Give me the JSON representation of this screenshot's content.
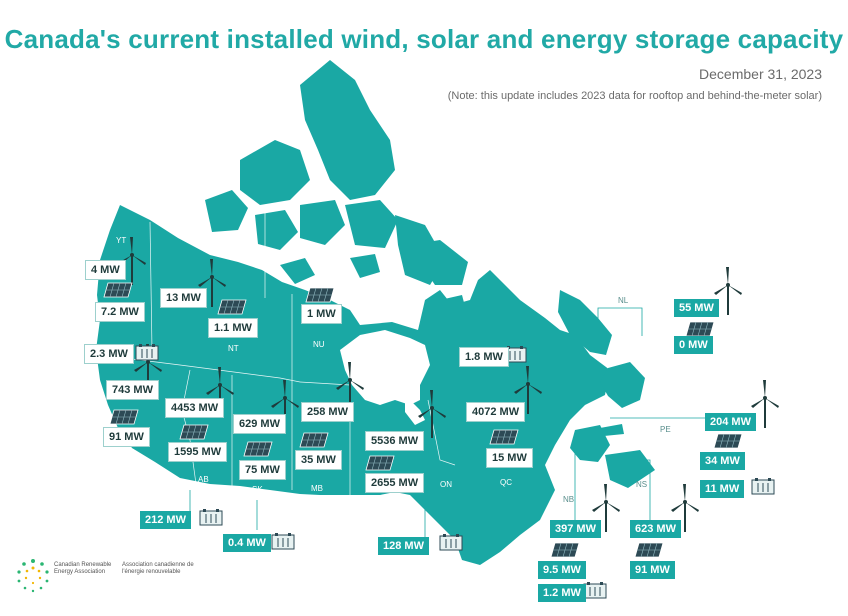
{
  "title": "Canada's current installed wind, solar and energy storage capacity",
  "date": "December 31, 2023",
  "note": "(Note: this update includes 2023 data for rooftop and behind-the-meter solar)",
  "colors": {
    "land": "#1aa8a4",
    "title": "#21a9a6",
    "water": "#ffffff"
  },
  "provinces": {
    "YT": "YT",
    "NT": "NT",
    "NU": "NU",
    "BC": "BC",
    "AB": "AB",
    "SK": "SK",
    "MB": "MB",
    "ON": "ON",
    "QC": "QC",
    "NL": "NL",
    "PE": "PE",
    "NS": "NS",
    "NB": "NB"
  },
  "capacity": {
    "YT": {
      "wind": "4 MW",
      "solar": "7.2 MW"
    },
    "NT": {
      "wind": "13 MW",
      "solar": "1.1 MW",
      "storage": "2.3 MW"
    },
    "NU": {
      "solar": "1 MW"
    },
    "BC": {
      "wind": "743 MW",
      "solar": "91 MW",
      "storage": "212 MW"
    },
    "AB": {
      "wind": "4453 MW",
      "solar": "1595 MW"
    },
    "SK": {
      "wind": "629 MW",
      "solar": "75 MW",
      "storage": "0.4 MW"
    },
    "MB": {
      "wind": "258 MW",
      "solar": "35 MW"
    },
    "ON": {
      "wind": "5536 MW",
      "solar": "2655 MW",
      "storage": "128 MW"
    },
    "QC": {
      "wind": "4072 MW",
      "solar": "15 MW",
      "storage": "1.8 MW"
    },
    "NL": {
      "wind": "55 MW",
      "solar": "0 MW"
    },
    "PE": {
      "wind": "204 MW",
      "solar": "34 MW",
      "storage": "11 MW"
    },
    "NB": {
      "wind": "397 MW",
      "solar": "9.5 MW",
      "storage": "1.2 MW"
    },
    "NS": {
      "wind": "623 MW",
      "solar": "91 MW"
    }
  },
  "logo": {
    "en": "Canadian Renewable Energy Association",
    "fr": "Association canadienne de l'énergie renouvelable"
  }
}
